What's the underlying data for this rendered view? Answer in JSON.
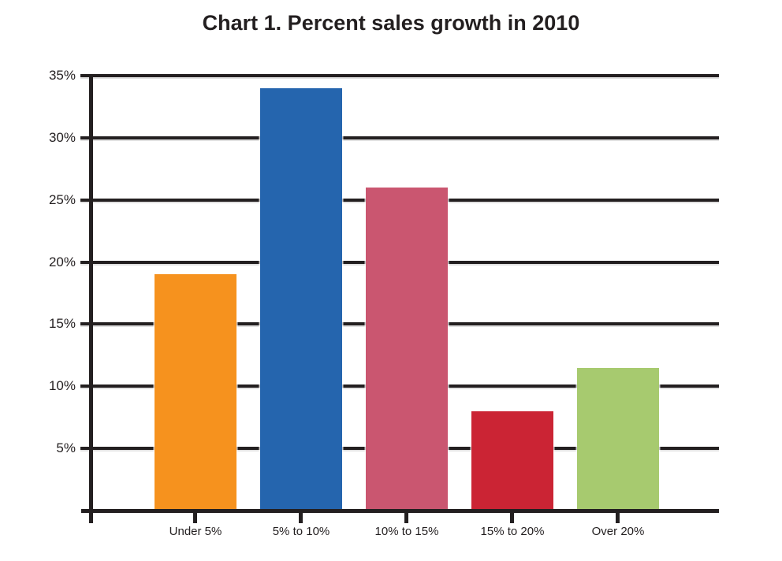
{
  "page": {
    "background_color": "#ffffff"
  },
  "chart_data": {
    "type": "bar",
    "title": "Chart 1. Percent sales growth in 2010",
    "categories": [
      "Under 5%",
      "5% to 10%",
      "10% to 15%",
      "15% to 20%",
      "Over 20%"
    ],
    "values": [
      19,
      34,
      26,
      8,
      11.5
    ],
    "bar_colors": [
      "#F6921E",
      "#2565AE",
      "#CA5670",
      "#CB2434",
      "#A7CA6F"
    ],
    "ytick_labels": [
      "5%",
      "10%",
      "15%",
      "20%",
      "25%",
      "30%",
      "35%"
    ],
    "ytick_values": [
      5,
      10,
      15,
      20,
      25,
      30,
      35
    ],
    "ylim": [
      0,
      35
    ],
    "ytick_step": 5,
    "xlabel": "",
    "ylabel": "",
    "grid": "horizontal",
    "legend": "none",
    "axis_color": "#231F20",
    "text_color": "#231F20"
  }
}
